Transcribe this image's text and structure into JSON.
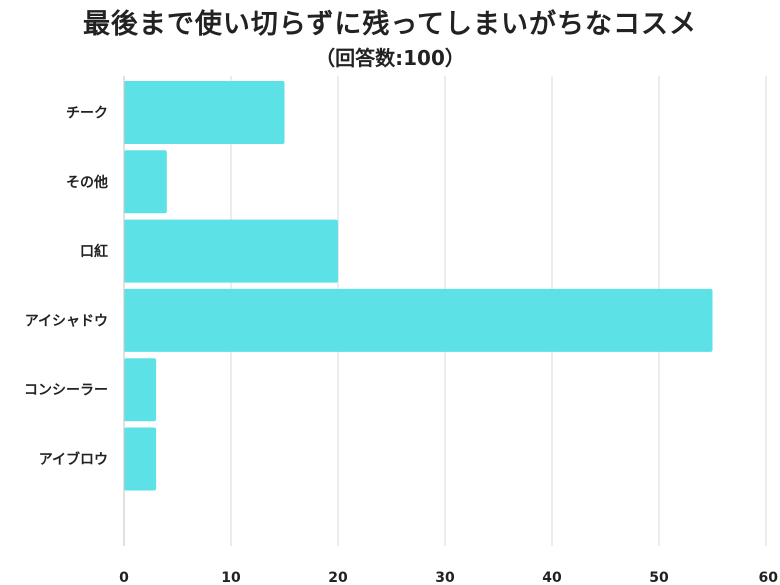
{
  "chart_data": {
    "type": "bar",
    "orientation": "horizontal",
    "title": "最後まで使い切らずに残ってしまいがちなコスメ",
    "subtitle": "（回答数:100）",
    "categories": [
      "チーク",
      "その他",
      "口紅",
      "アイシャドウ",
      "コンシーラー",
      "アイブロウ"
    ],
    "values": [
      15,
      4,
      20,
      55,
      3,
      3
    ],
    "xlim": [
      0,
      60
    ],
    "xticks": [
      0,
      10,
      20,
      30,
      40,
      50,
      60
    ],
    "grid": true,
    "bar_color": "#5ce1e6",
    "grid_color": "#d9d9d9",
    "axis_color": "#cccccc"
  }
}
